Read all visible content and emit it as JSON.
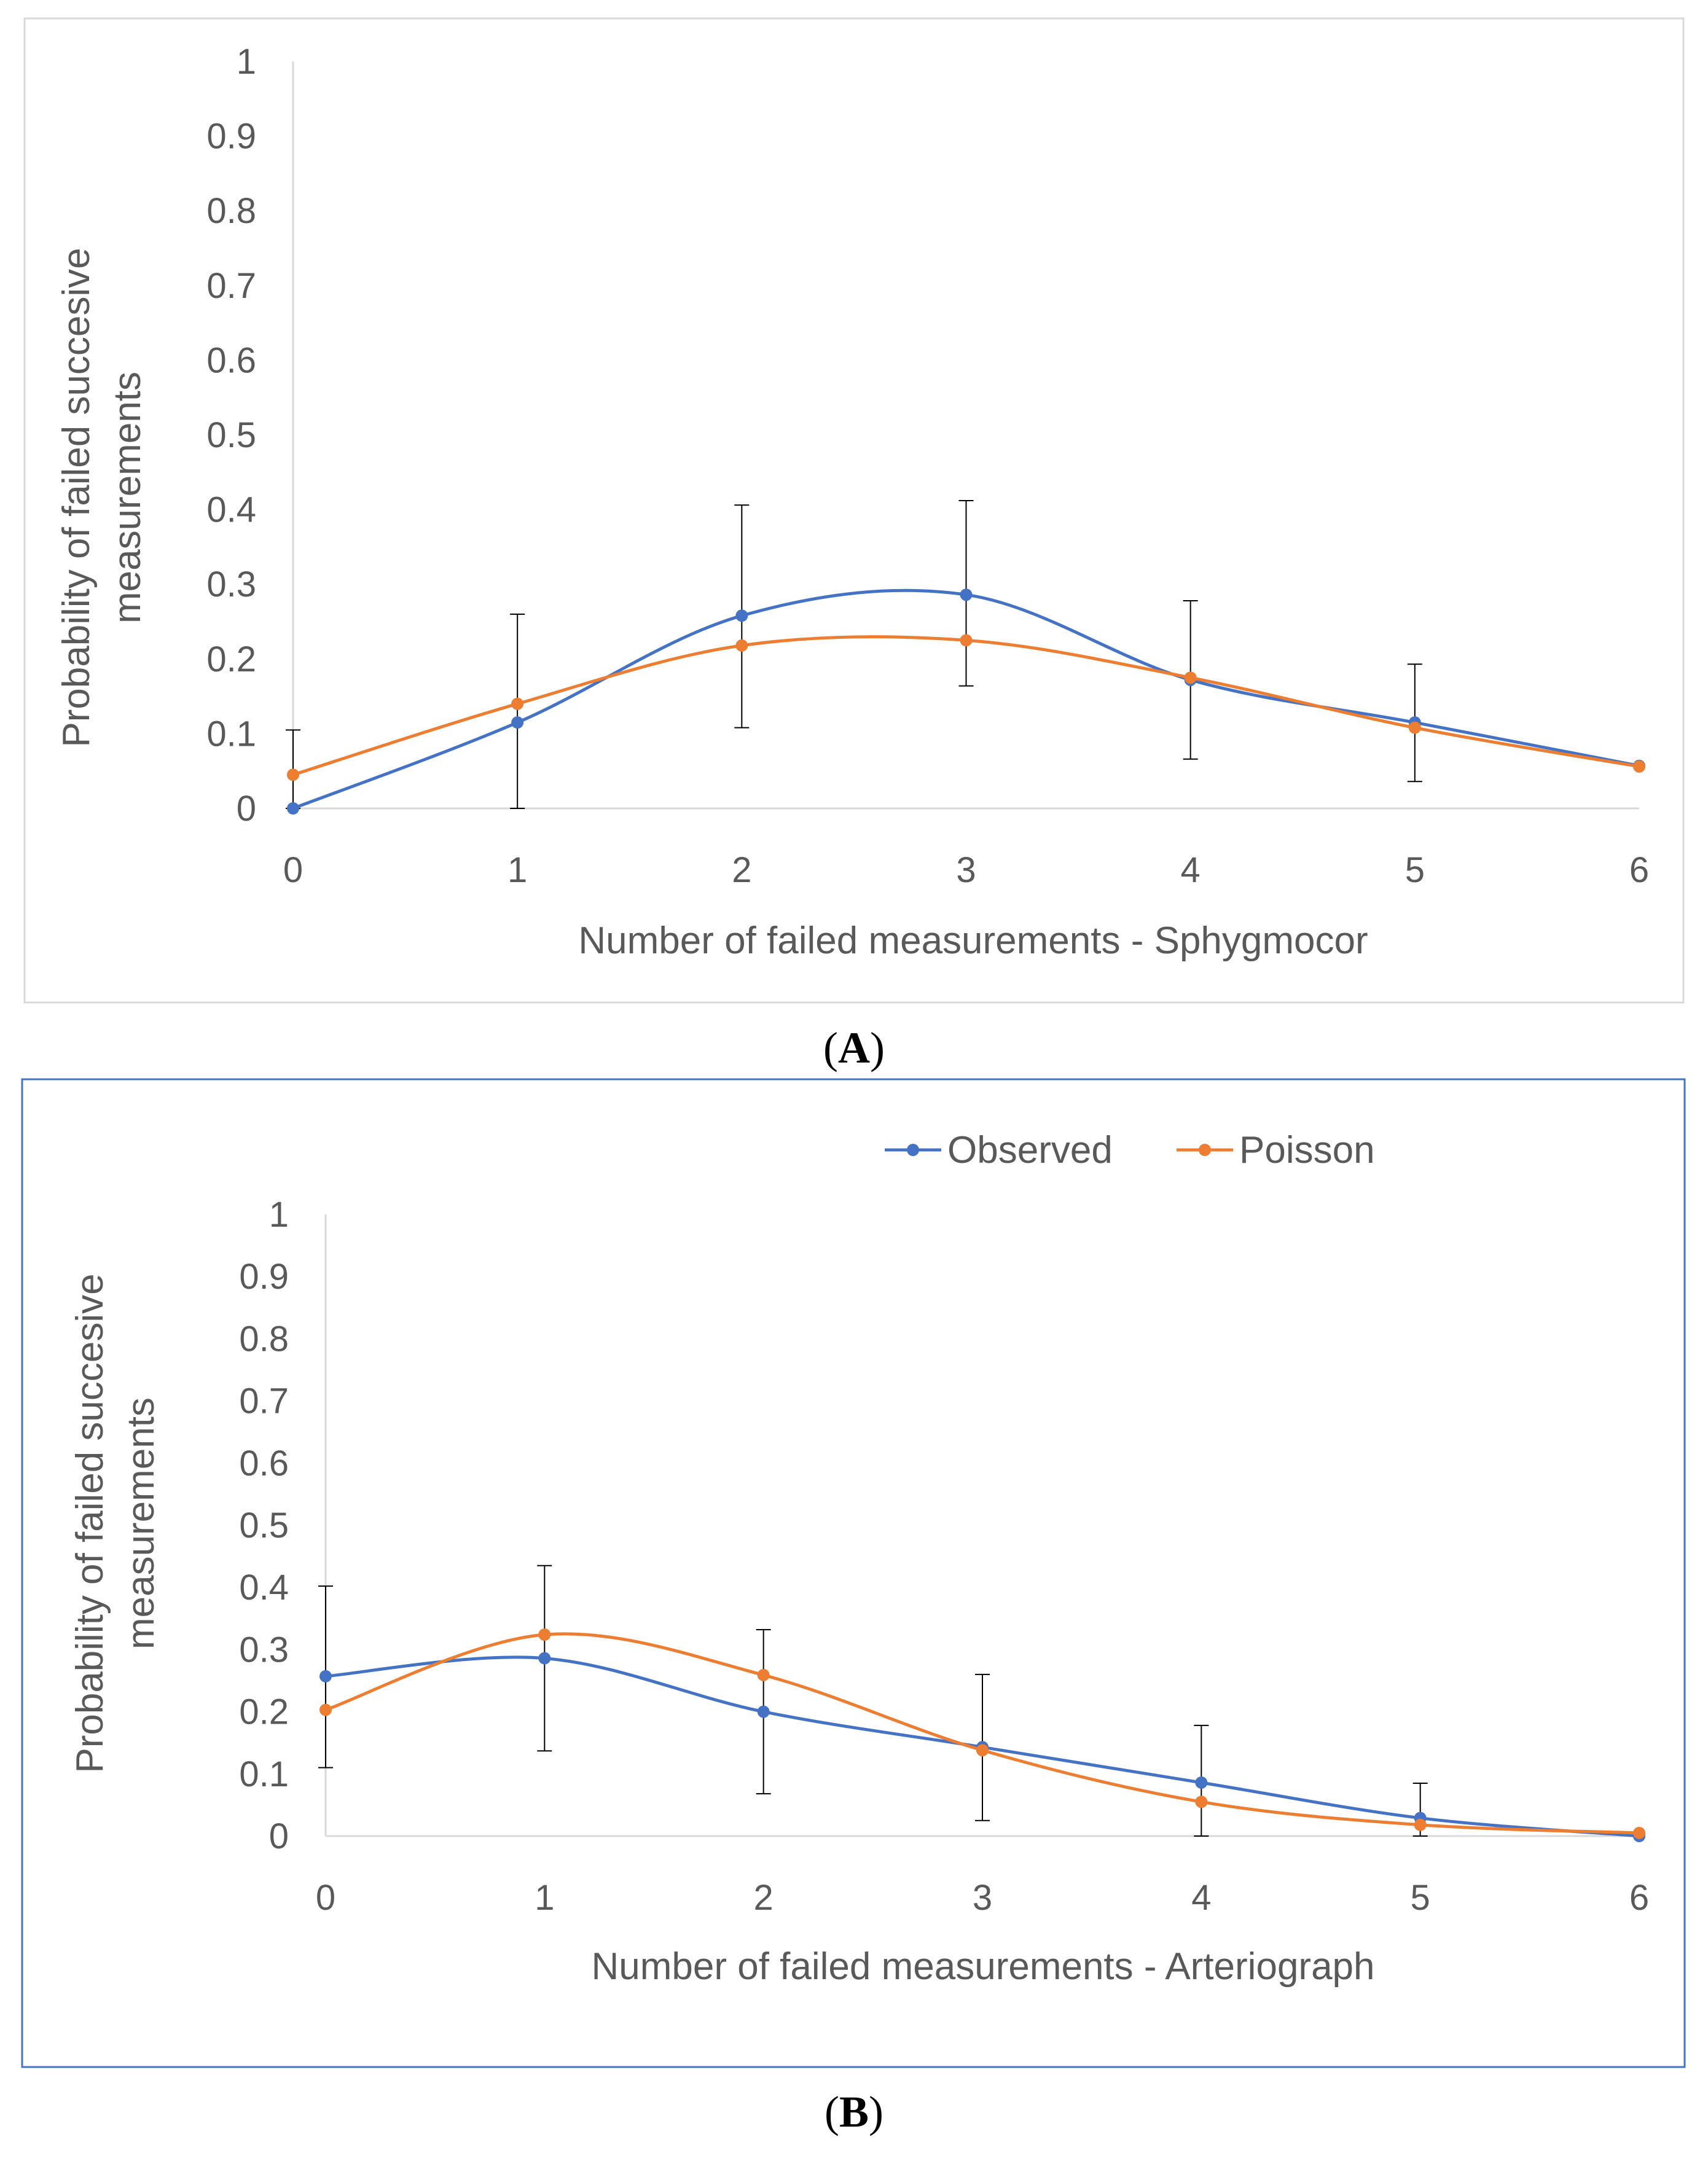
{
  "colors": {
    "observed": "#4472C4",
    "poisson": "#ED7D31",
    "axis": "#D9D9D9",
    "error_bar": "#000000",
    "text": "#595959",
    "frame_a": "#D9D9D9",
    "frame_b": "#4472C4"
  },
  "chart_data": [
    {
      "type": "line",
      "caption_open": "(",
      "caption_letter": "A",
      "caption_close": ")",
      "xlabel": "Number of failed measurements - Sphygmocor",
      "ylabel_line1": "Probability of failed succesive",
      "ylabel_line2": "measurements",
      "x": [
        0,
        1,
        2,
        3,
        4,
        5,
        6
      ],
      "xticks": [
        "0",
        "1",
        "2",
        "3",
        "4",
        "5",
        "6"
      ],
      "yticks": [
        "0",
        "0.1",
        "0.2",
        "0.3",
        "0.4",
        "0.5",
        "0.6",
        "0.7",
        "0.8",
        "0.9",
        "1"
      ],
      "xlim": [
        0,
        6
      ],
      "ylim": [
        0,
        1
      ],
      "smoothed": true,
      "grid": false,
      "legend": "none",
      "series": [
        {
          "name": "Observed",
          "color": "#4472C4",
          "values": [
            0.0,
            0.115,
            0.258,
            0.286,
            0.172,
            0.115,
            0.057
          ],
          "error_bars": [
            null,
            [
              0.0,
              0.26
            ],
            [
              0.108,
              0.406
            ],
            [
              0.164,
              0.412
            ],
            [
              0.066,
              0.278
            ],
            [
              0.036,
              0.193
            ],
            null
          ]
        },
        {
          "name": "Poisson",
          "color": "#ED7D31",
          "values": [
            0.045,
            0.14,
            0.218,
            0.225,
            0.175,
            0.108,
            0.056
          ]
        }
      ],
      "extra_error_bars": [
        {
          "x": 0,
          "low": 0.0,
          "high": 0.105
        }
      ]
    },
    {
      "type": "line",
      "caption_open": "(",
      "caption_letter": "B",
      "caption_close": ")",
      "xlabel": "Number of failed measurements - Arteriograph",
      "ylabel_line1": "Probability of failed succesive",
      "ylabel_line2": "measurements",
      "x": [
        0,
        1,
        2,
        3,
        4,
        5,
        6
      ],
      "xticks": [
        "0",
        "1",
        "2",
        "3",
        "4",
        "5",
        "6"
      ],
      "yticks": [
        "0",
        "0.1",
        "0.2",
        "0.3",
        "0.4",
        "0.5",
        "0.6",
        "0.7",
        "0.8",
        "0.9",
        "1"
      ],
      "xlim": [
        0,
        6
      ],
      "ylim": [
        0,
        1
      ],
      "smoothed": true,
      "grid": false,
      "legend": "top-right",
      "legend_labels": [
        "Observed",
        "Poisson"
      ],
      "series": [
        {
          "name": "Observed",
          "color": "#4472C4",
          "values": [
            0.257,
            0.286,
            0.2,
            0.143,
            0.086,
            0.029,
            0.0
          ],
          "error_bars": [
            [
              0.11,
              0.402
            ],
            [
              0.137,
              0.435
            ],
            [
              0.068,
              0.332
            ],
            [
              0.025,
              0.26
            ],
            [
              0.0,
              0.178
            ],
            [
              0.0,
              0.085
            ],
            null
          ]
        },
        {
          "name": "Poisson",
          "color": "#ED7D31",
          "values": [
            0.203,
            0.324,
            0.259,
            0.138,
            0.055,
            0.018,
            0.005
          ]
        }
      ]
    }
  ]
}
